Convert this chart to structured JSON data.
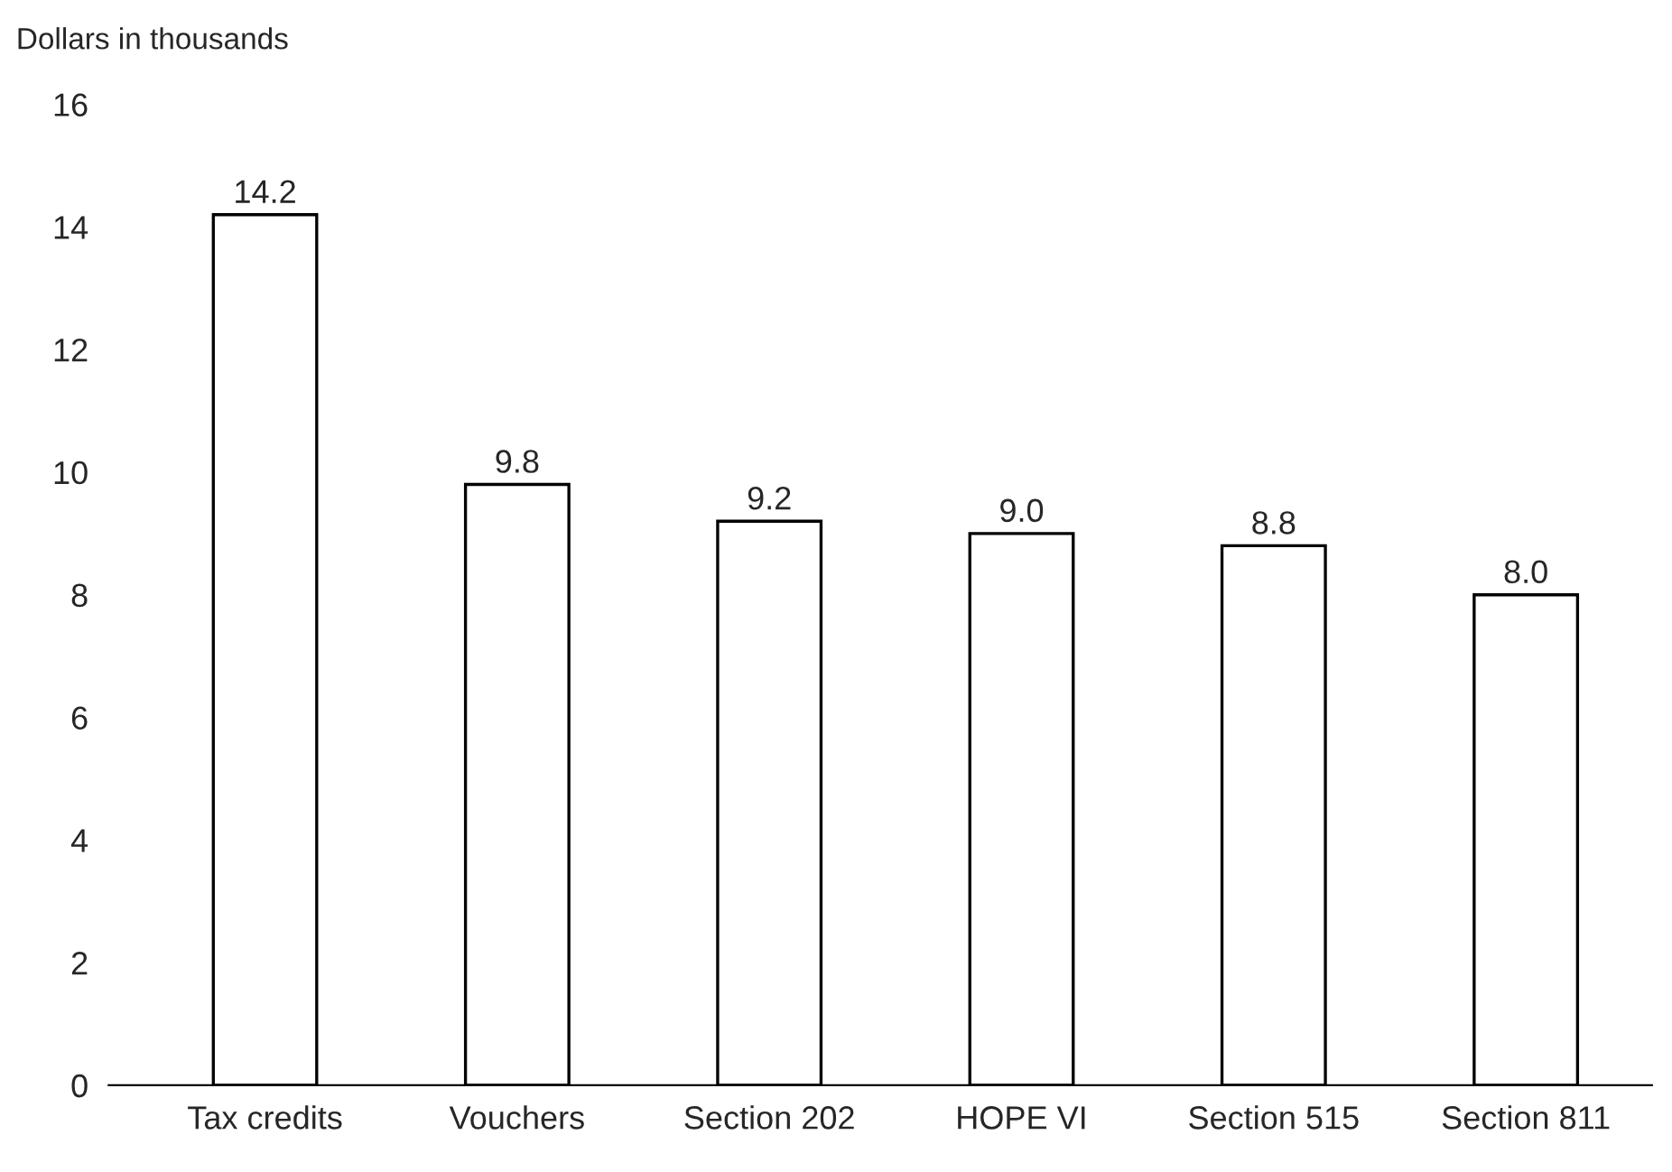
{
  "chart_data": {
    "type": "bar",
    "ylabel": "Dollars in thousands",
    "categories": [
      "Tax credits",
      "Vouchers",
      "Section 202",
      "HOPE VI",
      "Section 515",
      "Section 811"
    ],
    "values": [
      14.2,
      9.8,
      9.2,
      9.0,
      8.8,
      8.0
    ],
    "value_labels": [
      "14.2",
      "9.8",
      "9.2",
      "9.0",
      "8.8",
      "8.0"
    ],
    "color": "#ffffff",
    "ylim": [
      0,
      16
    ],
    "yticks": [
      0,
      2,
      4,
      6,
      8,
      10,
      12,
      14,
      16
    ],
    "grid": false,
    "legend": false
  }
}
